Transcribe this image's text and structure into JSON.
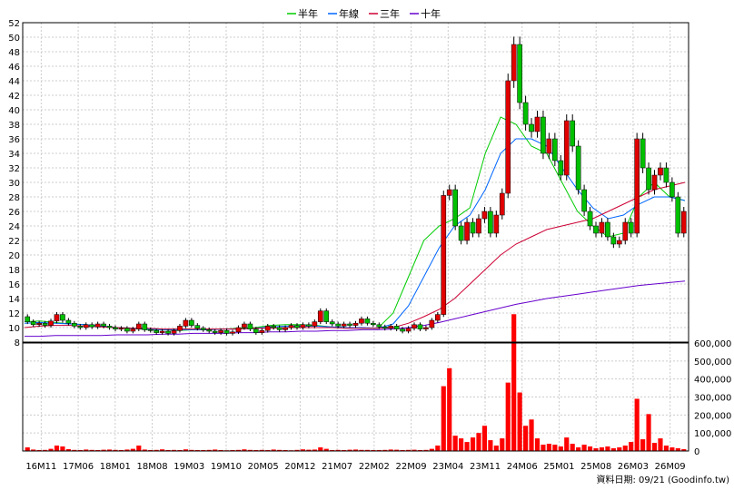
{
  "chart_data": {
    "type": "candlestick",
    "colors": {
      "up": "#e00000",
      "down": "#00c000",
      "ma_half": "#00cc00",
      "ma_year": "#0066ff",
      "ma_3y": "#cc0033",
      "ma_10y": "#6600cc",
      "volume": "#ff0000",
      "grid": "#cccccc",
      "axis": "#000000"
    },
    "legend": [
      {
        "name": "半年",
        "color": "#00cc00"
      },
      {
        "name": "年線",
        "color": "#0066ff"
      },
      {
        "name": "三年",
        "color": "#cc0033"
      },
      {
        "name": "十年",
        "color": "#6600cc"
      }
    ],
    "price_axis": {
      "min": 8,
      "max": 52,
      "step": 2,
      "labels": [
        "8",
        "10",
        "12",
        "14",
        "16",
        "18",
        "20",
        "22",
        "24",
        "26",
        "28",
        "30",
        "32",
        "34",
        "36",
        "38",
        "40",
        "42",
        "44",
        "46",
        "48",
        "50",
        "52"
      ]
    },
    "volume_axis": {
      "min": 0,
      "max": 600000,
      "labels": [
        "0",
        "100,000",
        "200,000",
        "300,000",
        "400,000",
        "500,000",
        "600,000"
      ]
    },
    "x_labels": [
      "16M11",
      "17M06",
      "18M01",
      "18M08",
      "19M03",
      "19M10",
      "20M05",
      "20M12",
      "21M07",
      "22M02",
      "22M09",
      "23M04",
      "23M11",
      "24M06",
      "25M01",
      "25M08",
      "26M03",
      "26M09"
    ],
    "candles": [
      [
        11.5,
        10.8
      ],
      [
        10.8,
        10.4
      ],
      [
        10.4,
        10.6
      ],
      [
        10.6,
        10.3
      ],
      [
        10.3,
        10.9
      ],
      [
        10.9,
        11.8
      ],
      [
        11.8,
        11.0
      ],
      [
        11.0,
        10.6
      ],
      [
        10.6,
        10.2
      ],
      [
        10.2,
        10.0
      ],
      [
        10.0,
        10.4
      ],
      [
        10.4,
        10.1
      ],
      [
        10.1,
        10.5
      ],
      [
        10.5,
        10.2
      ],
      [
        10.2,
        10.0
      ],
      [
        10.0,
        9.8
      ],
      [
        9.8,
        9.9
      ],
      [
        9.9,
        9.5
      ],
      [
        9.5,
        9.8
      ],
      [
        9.8,
        10.5
      ],
      [
        10.5,
        9.7
      ],
      [
        9.7,
        9.6
      ],
      [
        9.6,
        9.3
      ],
      [
        9.3,
        9.5
      ],
      [
        9.5,
        9.2
      ],
      [
        9.2,
        9.6
      ],
      [
        9.6,
        10.2
      ],
      [
        10.2,
        11.0
      ],
      [
        11.0,
        10.3
      ],
      [
        10.3,
        9.9
      ],
      [
        9.9,
        9.7
      ],
      [
        9.7,
        9.5
      ],
      [
        9.5,
        9.3
      ],
      [
        9.3,
        9.6
      ],
      [
        9.6,
        9.2
      ],
      [
        9.2,
        9.4
      ],
      [
        9.4,
        10.0
      ],
      [
        10.0,
        10.5
      ],
      [
        10.5,
        9.8
      ],
      [
        9.8,
        9.3
      ],
      [
        9.3,
        9.6
      ],
      [
        9.6,
        10.2
      ],
      [
        10.2,
        10.0
      ],
      [
        10.0,
        9.7
      ],
      [
        9.7,
        10.0
      ],
      [
        10.0,
        10.3
      ],
      [
        10.3,
        10.0
      ],
      [
        10.0,
        10.4
      ],
      [
        10.4,
        10.2
      ],
      [
        10.2,
        10.8
      ],
      [
        10.8,
        12.3
      ],
      [
        12.3,
        10.8
      ],
      [
        10.8,
        10.5
      ],
      [
        10.5,
        10.2
      ],
      [
        10.2,
        10.5
      ],
      [
        10.5,
        10.3
      ],
      [
        10.3,
        10.6
      ],
      [
        10.6,
        11.2
      ],
      [
        11.2,
        10.6
      ],
      [
        10.6,
        10.4
      ],
      [
        10.4,
        10.1
      ],
      [
        10.1,
        9.9
      ],
      [
        9.9,
        10.2
      ],
      [
        10.2,
        9.8
      ],
      [
        9.8,
        9.5
      ],
      [
        9.5,
        9.9
      ],
      [
        9.9,
        10.4
      ],
      [
        10.4,
        9.8
      ],
      [
        9.8,
        10.0
      ],
      [
        10.0,
        11.0
      ],
      [
        11.0,
        11.8
      ],
      [
        11.8,
        28.2
      ],
      [
        28.2,
        29.0
      ],
      [
        29.0,
        24.0
      ],
      [
        24.0,
        22.0
      ],
      [
        22.0,
        24.5
      ],
      [
        24.5,
        23.0
      ],
      [
        23.0,
        25.0
      ],
      [
        25.0,
        26.0
      ],
      [
        26.0,
        23.0
      ],
      [
        23.0,
        25.5
      ],
      [
        25.5,
        28.5
      ],
      [
        28.5,
        44.0
      ],
      [
        44.0,
        49.0
      ],
      [
        49.0,
        41.0
      ],
      [
        41.0,
        38.0
      ],
      [
        38.0,
        37.0
      ],
      [
        37.0,
        39.0
      ],
      [
        39.0,
        34.0
      ],
      [
        34.0,
        36.0
      ],
      [
        36.0,
        33.0
      ],
      [
        33.0,
        31.0
      ],
      [
        31.0,
        38.5
      ],
      [
        38.5,
        35.0
      ],
      [
        35.0,
        29.0
      ],
      [
        29.0,
        26.0
      ],
      [
        26.0,
        24.0
      ],
      [
        24.0,
        23.0
      ],
      [
        23.0,
        24.5
      ],
      [
        24.5,
        22.5
      ],
      [
        22.5,
        21.5
      ],
      [
        21.5,
        22.0
      ],
      [
        22.0,
        24.5
      ],
      [
        24.5,
        23.0
      ],
      [
        23.0,
        36.0
      ],
      [
        36.0,
        32.0
      ],
      [
        32.0,
        29.0
      ],
      [
        29.0,
        31.0
      ],
      [
        31.0,
        32.0
      ],
      [
        32.0,
        30.0
      ],
      [
        30.0,
        28.0
      ],
      [
        28.0,
        23.0
      ],
      [
        23.0,
        26.0
      ]
    ],
    "ma_half": [
      10.8,
      10.9,
      10.7,
      10.5,
      10.4,
      10.2,
      10.0,
      9.9,
      9.7,
      9.7,
      9.6,
      9.7,
      9.7,
      9.8,
      9.9,
      10.0,
      10.3,
      10.4,
      10.4,
      10.3,
      10.1,
      10.0,
      9.9,
      9.9,
      12.0,
      17.0,
      22.0,
      24.0,
      25.0,
      26.5,
      34.0,
      39.0,
      38.0,
      35.0,
      34.0,
      30.0,
      26.0,
      24.0,
      22.5,
      23.0,
      28.0,
      30.0,
      28.0,
      27.5
    ],
    "ma_year": [
      10.6,
      10.7,
      10.6,
      10.5,
      10.4,
      10.2,
      10.0,
      9.9,
      9.8,
      9.7,
      9.7,
      9.7,
      9.7,
      9.8,
      9.8,
      9.9,
      10.1,
      10.2,
      10.2,
      10.2,
      10.1,
      10.0,
      10.0,
      9.9,
      10.5,
      13.0,
      17.0,
      21.0,
      24.0,
      25.5,
      29.0,
      34.0,
      36.0,
      36.0,
      35.0,
      32.0,
      29.0,
      26.5,
      25.0,
      25.5,
      27.0,
      28.0,
      28.0,
      27.5
    ],
    "ma_3y": [
      10.0,
      10.2,
      10.3,
      10.3,
      10.2,
      10.1,
      10.0,
      9.9,
      9.9,
      9.8,
      9.8,
      9.8,
      9.8,
      9.8,
      9.8,
      9.9,
      9.9,
      10.0,
      10.0,
      10.0,
      10.0,
      9.9,
      9.9,
      9.9,
      10.0,
      10.6,
      11.5,
      12.5,
      14.0,
      16.0,
      18.0,
      20.0,
      21.5,
      22.5,
      23.5,
      24.0,
      24.5,
      25.0,
      26.0,
      27.0,
      28.0,
      29.0,
      29.5,
      30.0
    ],
    "ma_10y": [
      8.8,
      8.8,
      8.9,
      8.9,
      8.9,
      8.9,
      9.0,
      9.0,
      9.0,
      9.1,
      9.1,
      9.2,
      9.2,
      9.2,
      9.3,
      9.3,
      9.4,
      9.4,
      9.5,
      9.5,
      9.6,
      9.6,
      9.7,
      9.7,
      9.8,
      10.0,
      10.3,
      10.7,
      11.2,
      11.7,
      12.2,
      12.7,
      13.2,
      13.6,
      14.0,
      14.3,
      14.6,
      14.9,
      15.2,
      15.5,
      15.8,
      16.0,
      16.2,
      16.4
    ],
    "volume": [
      20000,
      8000,
      5000,
      6000,
      12000,
      30000,
      25000,
      10000,
      6000,
      5000,
      8000,
      6000,
      5000,
      7000,
      8000,
      6000,
      5000,
      8000,
      12000,
      30000,
      8000,
      5000,
      6000,
      9000,
      5000,
      6000,
      5000,
      9000,
      6000,
      5000,
      5000,
      6000,
      8000,
      5000,
      4000,
      5000,
      6000,
      9000,
      6000,
      5000,
      6000,
      5000,
      8000,
      6000,
      5000,
      4000,
      6000,
      9000,
      7000,
      8000,
      20000,
      12000,
      5000,
      6000,
      5000,
      7000,
      8000,
      6000,
      6000,
      5000,
      5000,
      6000,
      8000,
      7000,
      5000,
      6000,
      7000,
      5000,
      6000,
      12000,
      30000,
      360000,
      460000,
      85000,
      70000,
      50000,
      75000,
      100000,
      140000,
      60000,
      30000,
      70000,
      380000,
      760000,
      325000,
      140000,
      175000,
      70000,
      35000,
      40000,
      35000,
      25000,
      75000,
      40000,
      20000,
      35000,
      25000,
      15000,
      20000,
      25000,
      15000,
      20000,
      30000,
      50000,
      290000,
      65000,
      205000,
      45000,
      70000,
      30000,
      20000,
      15000,
      10000
    ]
  },
  "footer": {
    "source_label": "資料日期: 09/21  (Goodinfo.tw)"
  }
}
